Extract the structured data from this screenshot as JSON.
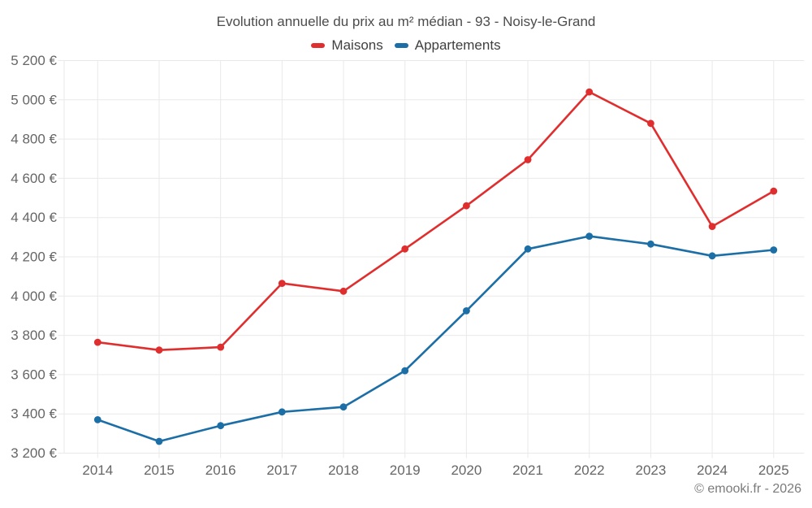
{
  "chart_data": {
    "type": "line",
    "title": "Evolution annuelle du prix au m² médian - 93 - Noisy-le-Grand",
    "categories": [
      "2014",
      "2015",
      "2016",
      "2017",
      "2018",
      "2019",
      "2020",
      "2021",
      "2022",
      "2023",
      "2024",
      "2025"
    ],
    "series": [
      {
        "name": "Maisons",
        "color": "#e02e2e",
        "values": [
          3765,
          3725,
          3740,
          4065,
          4025,
          4240,
          4460,
          4695,
          5040,
          4880,
          4355,
          4535
        ]
      },
      {
        "name": "Appartements",
        "color": "#1b6ea6",
        "values": [
          3370,
          3260,
          3340,
          3410,
          3435,
          3620,
          3925,
          4240,
          4305,
          4265,
          4205,
          4235
        ]
      }
    ],
    "ylim": [
      3200,
      5200
    ],
    "ytick_step": 200,
    "ytick_labels": [
      "3 200 €",
      "3 400 €",
      "3 600 €",
      "3 800 €",
      "4 000 €",
      "4 200 €",
      "4 400 €",
      "4 600 €",
      "4 800 €",
      "5 000 €",
      "5 200 €"
    ],
    "xlabel": "",
    "ylabel": "",
    "grid": true,
    "legend_position": "top",
    "marker": "circle",
    "colors": {
      "grid": "#e9e9e9",
      "axis_label": "#666666",
      "title": "#4c4c4c"
    }
  },
  "footer": {
    "credit": "© emooki.fr - 2026"
  }
}
